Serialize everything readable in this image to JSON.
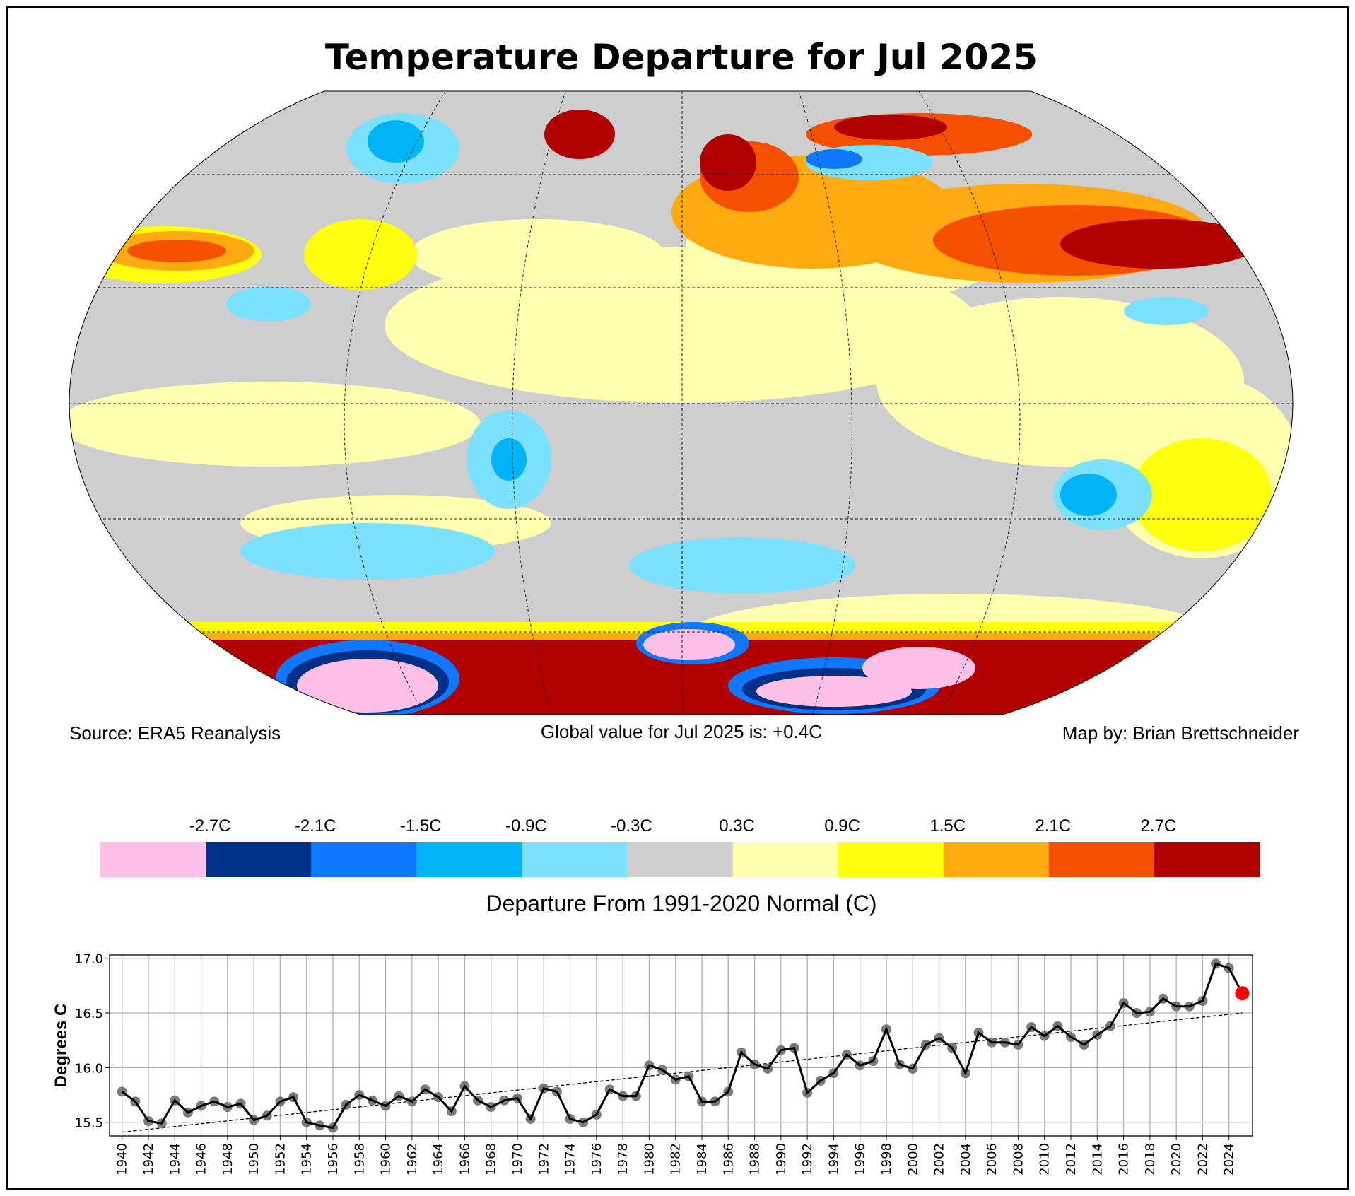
{
  "title": "Temperature Departure for Jul 2025",
  "footer": {
    "source": "Source: ERA5 Reanalysis",
    "global_value": "Global value for Jul 2025 is: +0.4C",
    "credit": "Map by: Brian Brettschneider"
  },
  "colorbar": {
    "label": "Departure From 1991-2020 Normal (C)",
    "ticks": [
      "-2.7C",
      "-2.1C",
      "-1.5C",
      "-0.9C",
      "-0.3C",
      "0.3C",
      "0.9C",
      "1.5C",
      "2.1C",
      "2.7C"
    ],
    "colors": [
      "#ffc0e8",
      "#003087",
      "#1078ff",
      "#00b4f5",
      "#7be1ff",
      "#cecece",
      "#ffffb0",
      "#ffff10",
      "#ffaa10",
      "#f55000",
      "#b00000"
    ]
  },
  "chart_data": {
    "type": "line",
    "title": "",
    "xlabel": "",
    "ylabel": "Degrees C",
    "ylim": [
      15.37,
      17.02
    ],
    "yticks": [
      "15.5",
      "16.0",
      "16.5",
      "17.0"
    ],
    "x": [
      1940,
      1941,
      1942,
      1943,
      1944,
      1945,
      1946,
      1947,
      1948,
      1949,
      1950,
      1951,
      1952,
      1953,
      1954,
      1955,
      1956,
      1957,
      1958,
      1959,
      1960,
      1961,
      1962,
      1963,
      1964,
      1965,
      1966,
      1967,
      1968,
      1969,
      1970,
      1971,
      1972,
      1973,
      1974,
      1975,
      1976,
      1977,
      1978,
      1979,
      1980,
      1981,
      1982,
      1983,
      1984,
      1985,
      1986,
      1987,
      1988,
      1989,
      1990,
      1991,
      1992,
      1993,
      1994,
      1995,
      1996,
      1997,
      1998,
      1999,
      2000,
      2001,
      2002,
      2003,
      2004,
      2005,
      2006,
      2007,
      2008,
      2009,
      2010,
      2011,
      2012,
      2013,
      2014,
      2015,
      2016,
      2017,
      2018,
      2019,
      2020,
      2021,
      2022,
      2023,
      2024,
      2025
    ],
    "values": [
      15.78,
      15.69,
      15.51,
      15.49,
      15.7,
      15.59,
      15.65,
      15.69,
      15.64,
      15.67,
      15.52,
      15.56,
      15.69,
      15.73,
      15.5,
      15.47,
      15.45,
      15.66,
      15.75,
      15.7,
      15.65,
      15.74,
      15.69,
      15.8,
      15.73,
      15.6,
      15.83,
      15.7,
      15.64,
      15.7,
      15.72,
      15.53,
      15.81,
      15.78,
      15.53,
      15.5,
      15.57,
      15.8,
      15.74,
      15.74,
      16.02,
      15.98,
      15.89,
      15.92,
      15.69,
      15.69,
      15.78,
      16.14,
      16.03,
      15.99,
      16.16,
      16.18,
      15.77,
      15.88,
      15.95,
      16.12,
      16.02,
      16.06,
      16.35,
      16.03,
      15.99,
      16.21,
      16.27,
      16.18,
      15.95,
      16.32,
      16.23,
      16.23,
      16.21,
      16.37,
      16.29,
      16.38,
      16.28,
      16.21,
      16.3,
      16.38,
      16.59,
      16.5,
      16.51,
      16.63,
      16.56,
      16.56,
      16.61,
      16.95,
      16.91,
      16.68
    ],
    "highlight": {
      "x": 2025,
      "value": 16.68,
      "color": "#ff0000"
    },
    "trend": {
      "x": [
        1940,
        2025
      ],
      "values": [
        15.41,
        16.5
      ]
    },
    "xticks": [
      "1940",
      "1942",
      "1944",
      "1946",
      "1948",
      "1950",
      "1952",
      "1954",
      "1956",
      "1958",
      "1960",
      "1962",
      "1964",
      "1966",
      "1968",
      "1970",
      "1972",
      "1974",
      "1976",
      "1978",
      "1980",
      "1982",
      "1984",
      "1986",
      "1988",
      "1990",
      "1992",
      "1994",
      "1996",
      "1998",
      "2000",
      "2002",
      "2004",
      "2006",
      "2008",
      "2010",
      "2012",
      "2014",
      "2016",
      "2018",
      "2020",
      "2022",
      "2024"
    ],
    "grid": true
  }
}
